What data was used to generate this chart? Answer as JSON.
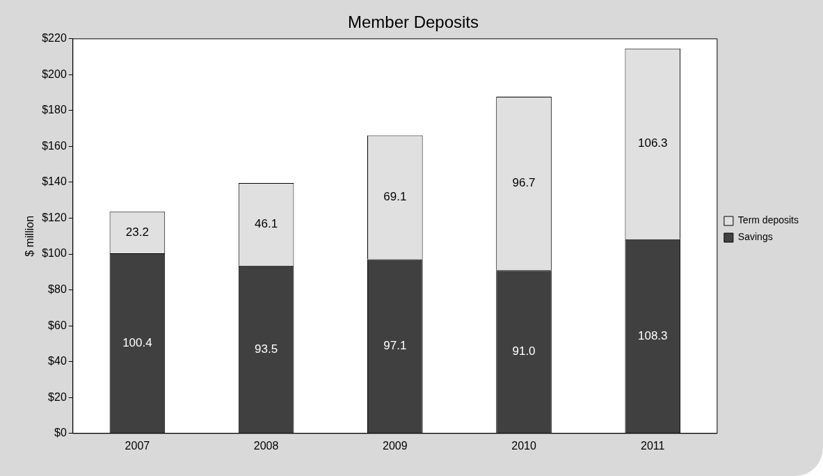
{
  "chart_data": {
    "type": "bar",
    "title": "Member Deposits",
    "ylabel": "$ million",
    "categories": [
      "2007",
      "2008",
      "2009",
      "2010",
      "2011"
    ],
    "stacked": true,
    "legend": "right",
    "grid": false,
    "ylim": [
      0,
      220
    ],
    "yticks": [
      {
        "value": 0,
        "label": "$0"
      },
      {
        "value": 20,
        "label": "$20"
      },
      {
        "value": 40,
        "label": "$40"
      },
      {
        "value": 60,
        "label": "$60"
      },
      {
        "value": 80,
        "label": "$80"
      },
      {
        "value": 100,
        "label": "$100"
      },
      {
        "value": 120,
        "label": "$120"
      },
      {
        "value": 140,
        "label": "$140"
      },
      {
        "value": 160,
        "label": "$160"
      },
      {
        "value": 180,
        "label": "$180"
      },
      {
        "value": 200,
        "label": "$200"
      },
      {
        "value": 220,
        "label": "$220"
      }
    ],
    "series": [
      {
        "name": "Savings",
        "color": "#404040",
        "values": [
          100.4,
          93.5,
          97.1,
          91.0,
          108.3
        ],
        "value_labels": [
          "100.4",
          "93.5",
          "97.1",
          "91.0",
          "108.3"
        ]
      },
      {
        "name": "Term deposits",
        "color": "#e0e0e0",
        "values": [
          23.2,
          46.1,
          69.1,
          96.7,
          106.3
        ],
        "value_labels": [
          "23.2",
          "46.1",
          "69.1",
          "96.7",
          "106.3"
        ]
      }
    ]
  }
}
